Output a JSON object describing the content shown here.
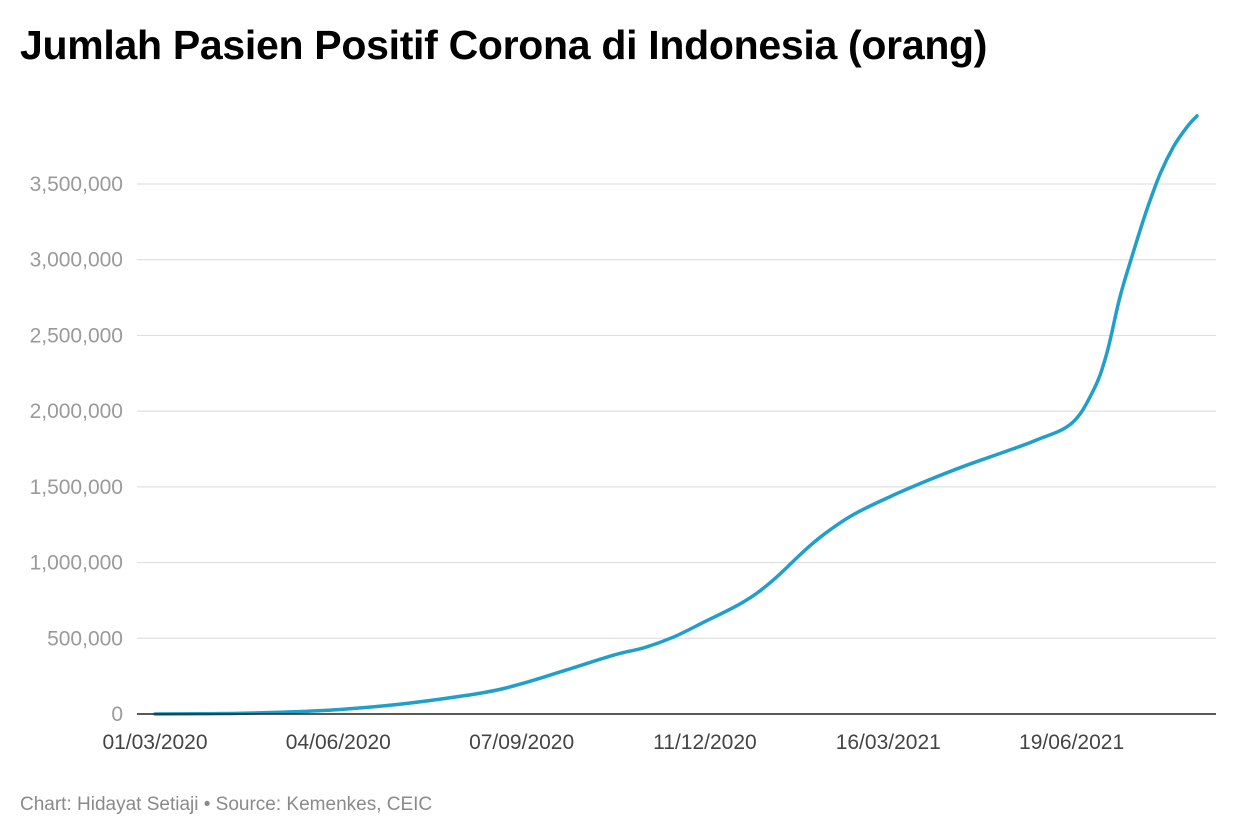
{
  "chart_data": {
    "type": "line",
    "title": "Jumlah Pasien Positif Corona di Indonesia (orang)",
    "xlabel": "",
    "ylabel": "",
    "x_start": "2020-03-01",
    "xlim": [
      0,
      540
    ],
    "ylim": [
      0,
      3900000
    ],
    "x_ticks": [
      {
        "x": "2020-03-01",
        "label": "01/03/2020"
      },
      {
        "x": "2020-06-04",
        "label": "04/06/2020"
      },
      {
        "x": "2020-09-07",
        "label": "07/09/2020"
      },
      {
        "x": "2020-12-11",
        "label": "11/12/2020"
      },
      {
        "x": "2021-03-16",
        "label": "16/03/2021"
      },
      {
        "x": "2021-06-19",
        "label": "19/06/2021"
      }
    ],
    "y_ticks": [
      {
        "value": 0,
        "label": "0"
      },
      {
        "value": 500000,
        "label": "500,000"
      },
      {
        "value": 1000000,
        "label": "1,000,000"
      },
      {
        "value": 1500000,
        "label": "1,500,000"
      },
      {
        "value": 2000000,
        "label": "2,000,000"
      },
      {
        "value": 2500000,
        "label": "2,500,000"
      },
      {
        "value": 3000000,
        "label": "3,000,000"
      },
      {
        "value": 3500000,
        "label": "3,500,000"
      }
    ],
    "grid": true,
    "color": "#1f9fc9",
    "series": [
      {
        "name": "",
        "points": [
          {
            "x": "2020-03-01",
            "y": 0
          },
          {
            "x": "2020-04-10",
            "y": 3500
          },
          {
            "x": "2020-05-10",
            "y": 14000
          },
          {
            "x": "2020-06-04",
            "y": 29000
          },
          {
            "x": "2020-06-30",
            "y": 57000
          },
          {
            "x": "2020-07-25",
            "y": 95000
          },
          {
            "x": "2020-08-20",
            "y": 145000
          },
          {
            "x": "2020-09-07",
            "y": 200000
          },
          {
            "x": "2020-09-30",
            "y": 290000
          },
          {
            "x": "2020-10-25",
            "y": 390000
          },
          {
            "x": "2020-11-10",
            "y": 440000
          },
          {
            "x": "2020-11-25",
            "y": 510000
          },
          {
            "x": "2020-12-11",
            "y": 610000
          },
          {
            "x": "2020-12-31",
            "y": 740000
          },
          {
            "x": "2021-01-15",
            "y": 880000
          },
          {
            "x": "2021-01-30",
            "y": 1060000
          },
          {
            "x": "2021-02-10",
            "y": 1180000
          },
          {
            "x": "2021-02-25",
            "y": 1310000
          },
          {
            "x": "2021-03-16",
            "y": 1430000
          },
          {
            "x": "2021-04-05",
            "y": 1540000
          },
          {
            "x": "2021-04-25",
            "y": 1640000
          },
          {
            "x": "2021-05-15",
            "y": 1730000
          },
          {
            "x": "2021-06-01",
            "y": 1810000
          },
          {
            "x": "2021-06-19",
            "y": 1920000
          },
          {
            "x": "2021-06-30",
            "y": 2130000
          },
          {
            "x": "2021-07-07",
            "y": 2370000
          },
          {
            "x": "2021-07-14",
            "y": 2750000
          },
          {
            "x": "2021-07-21",
            "y": 3050000
          },
          {
            "x": "2021-07-28",
            "y": 3330000
          },
          {
            "x": "2021-08-04",
            "y": 3570000
          },
          {
            "x": "2021-08-11",
            "y": 3750000
          },
          {
            "x": "2021-08-18",
            "y": 3880000
          },
          {
            "x": "2021-08-23",
            "y": 3950000
          }
        ]
      }
    ],
    "footer": "Chart: Hidayat Setiaji • Source: Kemenkes, CEIC"
  }
}
